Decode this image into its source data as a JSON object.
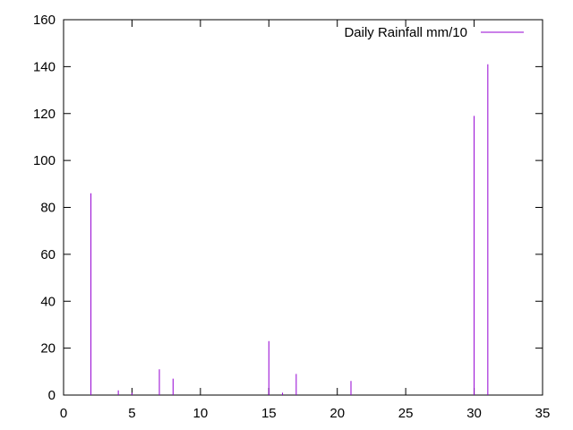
{
  "chart_data": {
    "type": "bar",
    "title": "",
    "xlabel": "",
    "ylabel": "",
    "xlim": [
      0,
      35
    ],
    "ylim": [
      0,
      160
    ],
    "xticks": [
      0,
      5,
      10,
      15,
      20,
      25,
      30,
      35
    ],
    "yticks": [
      0,
      20,
      40,
      60,
      80,
      100,
      120,
      140,
      160
    ],
    "grid": false,
    "legend_position": "top-right",
    "series": [
      {
        "name": "Daily Rainfall mm/10",
        "color": "#9400d3",
        "x": [
          1,
          2,
          3,
          4,
          5,
          6,
          7,
          8,
          9,
          10,
          11,
          12,
          13,
          14,
          15,
          16,
          17,
          18,
          19,
          20,
          21,
          22,
          23,
          24,
          25,
          26,
          27,
          28,
          29,
          30,
          31
        ],
        "values": [
          0,
          86,
          0,
          2,
          1,
          0,
          11,
          7,
          0,
          0,
          0,
          0,
          0,
          0,
          23,
          1,
          9,
          0,
          0,
          0,
          6,
          0,
          0,
          0,
          0,
          0,
          0,
          0,
          0,
          119,
          141
        ]
      }
    ]
  }
}
